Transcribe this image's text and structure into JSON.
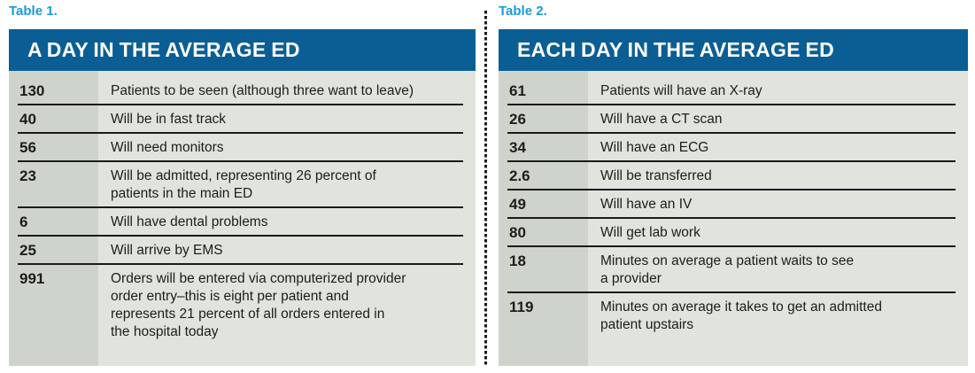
{
  "colors": {
    "header_blue": "#0a5e94",
    "label_blue": "#199bd8",
    "value_column_bg": "#ced4cc",
    "description_column_bg": "#e0e4dc",
    "separator_line": "#1a1a1a",
    "text": "#1d1d1b"
  },
  "tables": [
    {
      "label": "Table 1.",
      "title": "A DAY IN THE AVERAGE ED",
      "rows": [
        {
          "value": "130",
          "description": "Patients to be seen (although three want to leave)"
        },
        {
          "value": "40",
          "description": "Will be in fast track"
        },
        {
          "value": "56",
          "description": "Will need monitors"
        },
        {
          "value": "23",
          "description": "Will be admitted, representing 26 percent of\npatients in the main ED"
        },
        {
          "value": "6",
          "description": "Will have dental problems"
        },
        {
          "value": "25",
          "description": "Will arrive by EMS"
        },
        {
          "value": "991",
          "description": "Orders will be entered via computerized provider\norder entry–this is eight per patient and\nrepresents 21 percent of all orders entered in\nthe hospital today"
        }
      ]
    },
    {
      "label": "Table 2.",
      "title": "EACH DAY IN THE AVERAGE ED",
      "rows": [
        {
          "value": "61",
          "description": "Patients will have an X-ray"
        },
        {
          "value": "26",
          "description": "Will have a CT scan"
        },
        {
          "value": "34",
          "description": "Will have an ECG"
        },
        {
          "value": "2.6",
          "description": "Will be transferred"
        },
        {
          "value": "49",
          "description": "Will have an IV"
        },
        {
          "value": "80",
          "description": "Will get lab work"
        },
        {
          "value": "18",
          "description": "Minutes on average a patient waits to see\na provider"
        },
        {
          "value": "119",
          "description": "Minutes on average it takes to get an admitted\npatient upstairs"
        }
      ]
    }
  ]
}
